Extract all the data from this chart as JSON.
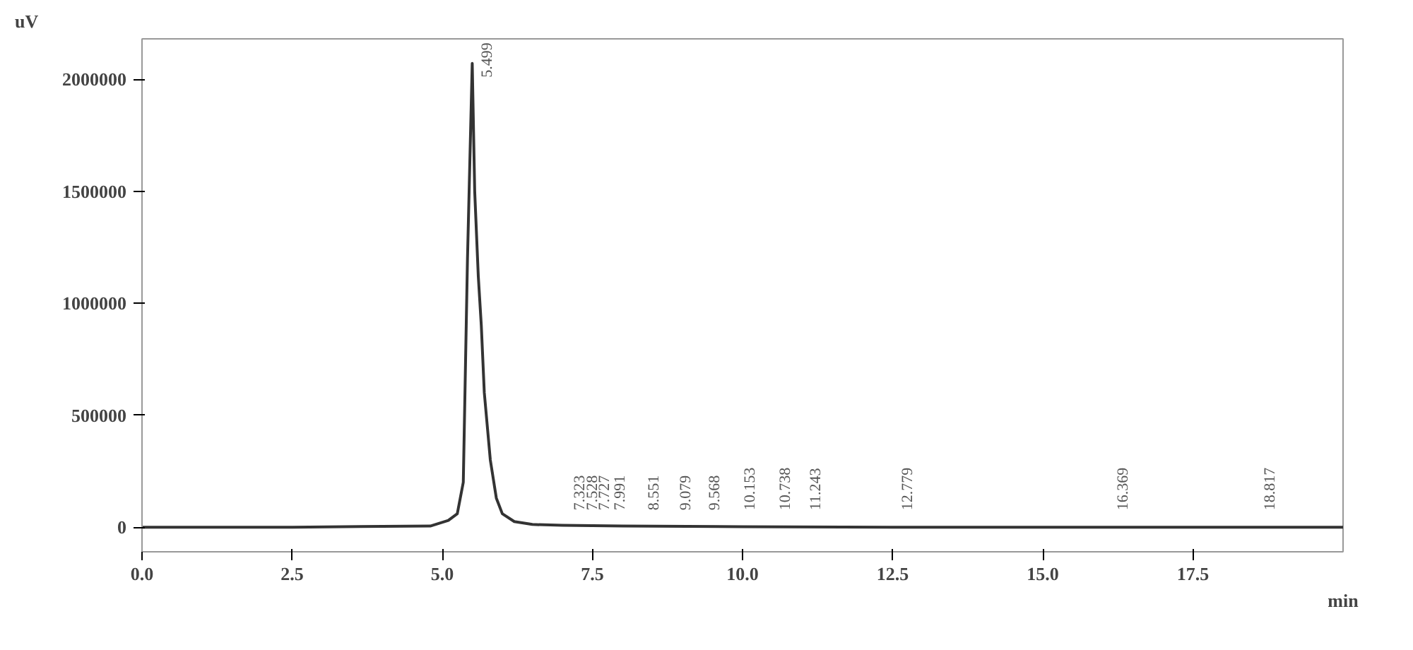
{
  "chart_data": {
    "type": "line",
    "xlabel": "min",
    "ylabel": "uV",
    "x": [
      0,
      2.5,
      4.8,
      5.1,
      5.25,
      5.35,
      5.42,
      5.499,
      5.54,
      5.6,
      5.65,
      5.7,
      5.8,
      5.9,
      6.0,
      6.2,
      6.5,
      7.0,
      8.0,
      10.0,
      12.5,
      15.0,
      17.5,
      20.0
    ],
    "series": [
      {
        "color": "#333333",
        "values": [
          0,
          0,
          5000,
          30000,
          60000,
          200000,
          1200000,
          2070000,
          1500000,
          1120000,
          900000,
          600000,
          300000,
          130000,
          60000,
          25000,
          12000,
          8000,
          5000,
          2000,
          0,
          0,
          0,
          0
        ]
      }
    ],
    "annotations": [
      {
        "text": "5.499",
        "x": 5.499,
        "y": 2070000
      },
      {
        "text": "7.323",
        "x": 7.323,
        "y": 0
      },
      {
        "text": "7.528",
        "x": 7.528,
        "y": 0
      },
      {
        "text": "7.727",
        "x": 7.727,
        "y": 0
      },
      {
        "text": "7.991",
        "x": 7.991,
        "y": 0
      },
      {
        "text": "8.551",
        "x": 8.551,
        "y": 0
      },
      {
        "text": "9.079",
        "x": 9.079,
        "y": 0
      },
      {
        "text": "9.568",
        "x": 9.568,
        "y": 0
      },
      {
        "text": "10.153",
        "x": 10.153,
        "y": 0
      },
      {
        "text": "10.738",
        "x": 10.738,
        "y": 0
      },
      {
        "text": "11.243",
        "x": 11.243,
        "y": 0
      },
      {
        "text": "12.779",
        "x": 12.779,
        "y": 0
      },
      {
        "text": "16.369",
        "x": 16.369,
        "y": 0
      },
      {
        "text": "18.817",
        "x": 18.817,
        "y": 0
      }
    ],
    "xlim": [
      0,
      20
    ],
    "xticks": [
      {
        "value": 0,
        "label": "0.0"
      },
      {
        "value": 2.5,
        "label": "2.5"
      },
      {
        "value": 5,
        "label": "5.0"
      },
      {
        "value": 7.5,
        "label": "7.5"
      },
      {
        "value": 10,
        "label": "10.0"
      },
      {
        "value": 12.5,
        "label": "12.5"
      },
      {
        "value": 15,
        "label": "15.0"
      },
      {
        "value": 17.5,
        "label": "17.5"
      }
    ],
    "ylim": [
      -110000,
      2180000
    ],
    "yticks": [
      0,
      500000,
      1000000,
      1500000,
      2000000
    ],
    "grid": false
  }
}
